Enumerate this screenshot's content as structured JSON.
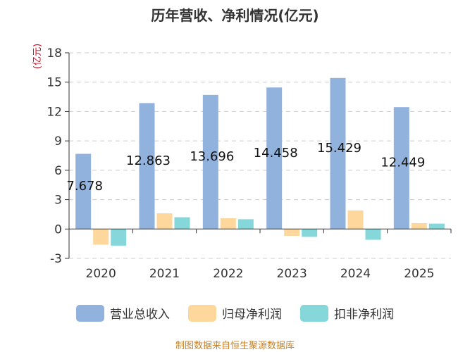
{
  "chart_data": {
    "type": "bar",
    "title": "历年营收、净利情况(亿元)",
    "ylabel": "(亿元)",
    "categories": [
      "2020",
      "2021",
      "2022",
      "2023",
      "2024",
      "2025"
    ],
    "ylim": [
      -3,
      18
    ],
    "yticks": [
      18,
      15,
      12,
      9,
      6,
      3,
      0,
      -3
    ],
    "grid": true,
    "legend_position": "bottom",
    "series": [
      {
        "name": "营业总收入",
        "color": "#92b2de",
        "values": [
          7.678,
          12.863,
          13.696,
          14.458,
          15.429,
          12.449
        ]
      },
      {
        "name": "归母净利润",
        "color": "#fdd79b",
        "values": [
          -1.6,
          1.6,
          1.1,
          -0.7,
          1.9,
          0.6
        ]
      },
      {
        "name": "扣非净利润",
        "color": "#86d7da",
        "values": [
          -1.7,
          1.2,
          1.0,
          -0.8,
          -1.1,
          0.55
        ]
      }
    ],
    "data_labels": [
      "7.678",
      "12.863",
      "13.696",
      "14.458",
      "15.429",
      "12.449"
    ]
  },
  "footer": {
    "source": "制图数据来自恒生聚源数据库"
  }
}
